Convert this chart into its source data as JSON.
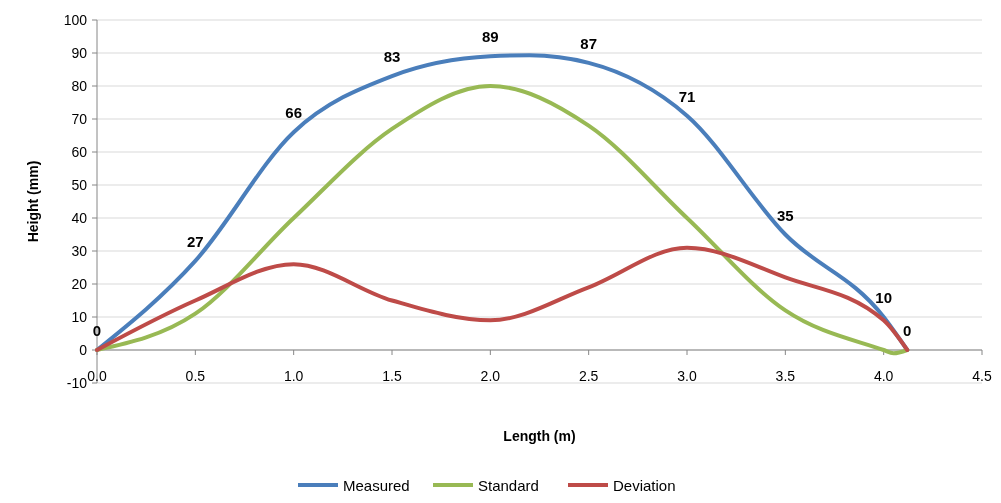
{
  "chart_data": {
    "type": "line",
    "xlabel": "Length (m)",
    "ylabel": "Height (mm)",
    "xlim": [
      0,
      4.5
    ],
    "xticks": [
      {
        "value": 0,
        "label": "0.0"
      },
      {
        "value": 0.5,
        "label": "0.5"
      },
      {
        "value": 1,
        "label": "1.0"
      },
      {
        "value": 1.5,
        "label": "1.5"
      },
      {
        "value": 2,
        "label": "2.0"
      },
      {
        "value": 2.5,
        "label": "2.5"
      },
      {
        "value": 3,
        "label": "3.0"
      },
      {
        "value": 3.5,
        "label": "3.5"
      },
      {
        "value": 4,
        "label": "4.0"
      },
      {
        "value": 4.5,
        "label": "4.5"
      }
    ],
    "ylim": [
      -10,
      100
    ],
    "yticks": [
      -10,
      0,
      10,
      20,
      30,
      40,
      50,
      60,
      70,
      80,
      90,
      100
    ],
    "grid": "y",
    "legend": "bottom",
    "marker": "none",
    "line_style": "solid",
    "series": [
      {
        "name": "Measured",
        "color": "#4a7ebb",
        "x": [
          0,
          0.5,
          1,
          1.5,
          2,
          2.2,
          2.5,
          3,
          3.5,
          4,
          4.12
        ],
        "values": [
          0,
          27,
          66,
          83,
          89,
          89.3,
          87,
          71,
          35,
          10,
          0
        ],
        "value_labels": [
          "0",
          "27",
          "66",
          "83",
          "89",
          null,
          "87",
          "71",
          "35",
          "10",
          "0"
        ]
      },
      {
        "name": "Standard",
        "color": "#98b954",
        "x": [
          0,
          0.5,
          1,
          1.5,
          2,
          2.5,
          3,
          3.5,
          4,
          4.05,
          4.12
        ],
        "values": [
          0,
          11,
          40,
          67,
          80,
          68,
          40,
          12,
          0,
          -1,
          0
        ]
      },
      {
        "name": "Deviation",
        "color": "#be4b48",
        "x": [
          0,
          0.5,
          1,
          1.5,
          2,
          2.5,
          3,
          3.5,
          4,
          4.12
        ],
        "values": [
          0,
          15,
          26,
          15,
          9,
          19,
          31,
          22,
          9,
          0
        ]
      }
    ]
  }
}
